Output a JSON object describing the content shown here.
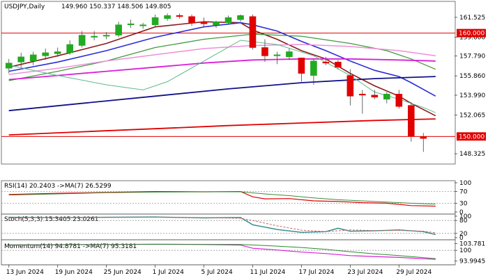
{
  "chart_data": {
    "type": "candlestick",
    "symbol_label": "USDJPY,Daily",
    "ohlc_label": "149.960 150.337 148.506 149.805",
    "price_axis": {
      "ticks": [
        "161.525",
        "159.600",
        "157.790",
        "155.860",
        "153.990",
        "152.065",
        "148.325"
      ],
      "ylim": [
        147.4,
        163.0
      ]
    },
    "price_tags": [
      {
        "label": "160.000",
        "value": 160.0,
        "color": "#e00000"
      },
      {
        "label": "150.000",
        "value": 150.0,
        "color": "#e00000"
      }
    ],
    "x_labels": [
      {
        "label": "13 Jun 2024",
        "index": 0
      },
      {
        "label": "19 Jun 2024",
        "index": 4
      },
      {
        "label": "25 Jun 2024",
        "index": 8
      },
      {
        "label": "1 Jul 2024",
        "index": 12
      },
      {
        "label": "5 Jul 2024",
        "index": 16
      },
      {
        "label": "11 Jul 2024",
        "index": 20
      },
      {
        "label": "17 Jul 2024",
        "index": 24
      },
      {
        "label": "23 Jul 2024",
        "index": 28
      },
      {
        "label": "29 Jul 2024",
        "index": 32
      }
    ],
    "n_slots": 37,
    "candles": [
      {
        "o": 156.6,
        "h": 157.5,
        "l": 156.1,
        "c": 157.1
      },
      {
        "o": 157.2,
        "h": 158.1,
        "l": 156.7,
        "c": 157.7
      },
      {
        "o": 157.3,
        "h": 158.2,
        "l": 156.9,
        "c": 157.9
      },
      {
        "o": 157.8,
        "h": 158.5,
        "l": 157.4,
        "c": 158.1
      },
      {
        "o": 158.0,
        "h": 158.6,
        "l": 157.7,
        "c": 158.2
      },
      {
        "o": 158.1,
        "h": 159.3,
        "l": 157.9,
        "c": 158.9
      },
      {
        "o": 158.8,
        "h": 160.2,
        "l": 158.6,
        "c": 159.8
      },
      {
        "o": 159.6,
        "h": 160.2,
        "l": 159.3,
        "c": 159.7
      },
      {
        "o": 159.7,
        "h": 160.1,
        "l": 159.4,
        "c": 159.8
      },
      {
        "o": 159.8,
        "h": 161.1,
        "l": 159.6,
        "c": 160.8
      },
      {
        "o": 160.8,
        "h": 161.3,
        "l": 160.5,
        "c": 160.9
      },
      {
        "o": 160.7,
        "h": 161.0,
        "l": 160.4,
        "c": 160.8
      },
      {
        "o": 160.8,
        "h": 161.8,
        "l": 160.6,
        "c": 161.5
      },
      {
        "o": 161.4,
        "h": 161.9,
        "l": 161.2,
        "c": 161.7
      },
      {
        "o": 161.7,
        "h": 161.9,
        "l": 161.4,
        "c": 161.6
      },
      {
        "o": 161.6,
        "h": 161.8,
        "l": 160.7,
        "c": 161.0
      },
      {
        "o": 161.1,
        "h": 161.5,
        "l": 160.6,
        "c": 160.9
      },
      {
        "o": 160.8,
        "h": 161.2,
        "l": 160.5,
        "c": 161.1
      },
      {
        "o": 161.0,
        "h": 161.7,
        "l": 160.8,
        "c": 161.5
      },
      {
        "o": 161.3,
        "h": 161.8,
        "l": 161.1,
        "c": 161.7
      },
      {
        "o": 161.6,
        "h": 161.8,
        "l": 158.4,
        "c": 158.6
      },
      {
        "o": 158.6,
        "h": 159.4,
        "l": 157.2,
        "c": 157.8
      },
      {
        "o": 157.8,
        "h": 158.2,
        "l": 157.0,
        "c": 157.9
      },
      {
        "o": 157.7,
        "h": 158.5,
        "l": 157.4,
        "c": 158.2
      },
      {
        "o": 157.6,
        "h": 157.6,
        "l": 155.3,
        "c": 156.1
      },
      {
        "o": 155.9,
        "h": 157.5,
        "l": 155.0,
        "c": 157.3
      },
      {
        "o": 157.2,
        "h": 157.7,
        "l": 156.9,
        "c": 157.1
      },
      {
        "o": 157.2,
        "h": 157.4,
        "l": 156.5,
        "c": 156.7
      },
      {
        "o": 155.9,
        "h": 156.5,
        "l": 153.0,
        "c": 153.9
      },
      {
        "o": 154.1,
        "h": 154.5,
        "l": 152.2,
        "c": 154.0
      },
      {
        "o": 154.0,
        "h": 154.5,
        "l": 153.6,
        "c": 153.8
      },
      {
        "o": 153.6,
        "h": 154.3,
        "l": 153.2,
        "c": 154.1
      },
      {
        "o": 154.1,
        "h": 154.5,
        "l": 152.7,
        "c": 152.9
      },
      {
        "o": 153.0,
        "h": 153.3,
        "l": 149.5,
        "c": 150.0
      },
      {
        "o": 149.96,
        "h": 150.337,
        "l": 148.506,
        "c": 149.805
      }
    ],
    "colors": {
      "bull": "#22aa22",
      "bear": "#e00000",
      "edge": "#444444"
    },
    "moving_averages": [
      {
        "color": "#8b1a1a",
        "width": 1.6,
        "points": [
          [
            0,
            156.7
          ],
          [
            4,
            157.8
          ],
          [
            8,
            159.0
          ],
          [
            12,
            160.6
          ],
          [
            16,
            161.1
          ],
          [
            19,
            161.0
          ],
          [
            20,
            160.3
          ],
          [
            22,
            159.4
          ],
          [
            24,
            158.3
          ],
          [
            26,
            157.5
          ],
          [
            28,
            156.1
          ],
          [
            30,
            154.9
          ],
          [
            32,
            153.9
          ],
          [
            33,
            153.2
          ],
          [
            35,
            152.0
          ]
        ]
      },
      {
        "color": "#2b2bd8",
        "width": 1.6,
        "points": [
          [
            0,
            156.3
          ],
          [
            4,
            157.2
          ],
          [
            8,
            158.3
          ],
          [
            12,
            159.6
          ],
          [
            16,
            160.6
          ],
          [
            19,
            161.0
          ],
          [
            20,
            160.8
          ],
          [
            22,
            160.2
          ],
          [
            24,
            159.2
          ],
          [
            26,
            158.3
          ],
          [
            28,
            157.3
          ],
          [
            30,
            156.4
          ],
          [
            32,
            155.8
          ],
          [
            33,
            155.2
          ],
          [
            35,
            153.9
          ]
        ]
      },
      {
        "color": "#3e9a3e",
        "width": 1.3,
        "points": [
          [
            0,
            155.4
          ],
          [
            4,
            156.3
          ],
          [
            8,
            157.3
          ],
          [
            12,
            158.6
          ],
          [
            16,
            159.4
          ],
          [
            20,
            159.9
          ],
          [
            24,
            159.7
          ],
          [
            28,
            159.0
          ],
          [
            31,
            158.3
          ],
          [
            33,
            157.5
          ],
          [
            35,
            156.5
          ]
        ]
      },
      {
        "color": "#ee8fd8",
        "width": 1.5,
        "points": [
          [
            0,
            156.0
          ],
          [
            4,
            156.6
          ],
          [
            8,
            157.3
          ],
          [
            12,
            157.9
          ],
          [
            16,
            158.5
          ],
          [
            20,
            158.8
          ],
          [
            24,
            158.9
          ],
          [
            28,
            158.7
          ],
          [
            32,
            158.3
          ],
          [
            35,
            157.8
          ]
        ]
      },
      {
        "color": "#d81fd8",
        "width": 1.8,
        "points": [
          [
            0,
            155.5
          ],
          [
            4,
            155.9
          ],
          [
            8,
            156.3
          ],
          [
            12,
            156.7
          ],
          [
            16,
            157.1
          ],
          [
            20,
            157.4
          ],
          [
            24,
            157.5
          ],
          [
            28,
            157.5
          ],
          [
            32,
            157.4
          ],
          [
            35,
            157.3
          ]
        ]
      },
      {
        "color": "#111188",
        "width": 1.8,
        "points": [
          [
            0,
            152.5
          ],
          [
            6,
            153.2
          ],
          [
            12,
            153.9
          ],
          [
            18,
            154.6
          ],
          [
            24,
            155.2
          ],
          [
            30,
            155.6
          ],
          [
            35,
            155.8
          ]
        ]
      },
      {
        "color": "#e00000",
        "width": 1.8,
        "points": [
          [
            0,
            150.15
          ],
          [
            6,
            150.45
          ],
          [
            12,
            150.75
          ],
          [
            18,
            151.05
          ],
          [
            24,
            151.3
          ],
          [
            30,
            151.55
          ],
          [
            35,
            151.7
          ]
        ]
      },
      {
        "color": "#5cb88a",
        "width": 1.0,
        "points": [
          [
            0,
            156.9
          ],
          [
            4,
            155.9
          ],
          [
            8,
            155.0
          ],
          [
            11,
            154.5
          ],
          [
            13,
            155.3
          ],
          [
            16,
            157.3
          ],
          [
            19,
            159.3
          ],
          [
            22,
            158.9
          ],
          [
            25,
            157.8
          ],
          [
            28,
            155.9
          ],
          [
            30,
            154.3
          ],
          [
            32,
            153.6
          ],
          [
            34,
            152.8
          ],
          [
            35,
            152.3
          ]
        ]
      }
    ],
    "panels": [
      {
        "name": "rsi",
        "label": "RSI(14) 20.2403 ->MA(7) 26.5299",
        "ticks": [
          "100",
          "70",
          "30",
          "0"
        ],
        "tick_values": [
          100,
          70,
          30,
          0
        ],
        "ylim": [
          0,
          100
        ],
        "levels": [
          70,
          30
        ],
        "series": [
          {
            "color": "#e00000",
            "width": 1.2,
            "points": [
              [
                0,
                60
              ],
              [
                4,
                64
              ],
              [
                8,
                67
              ],
              [
                12,
                70
              ],
              [
                16,
                69
              ],
              [
                19,
                70
              ],
              [
                20,
                52
              ],
              [
                21,
                45
              ],
              [
                23,
                46
              ],
              [
                25,
                38
              ],
              [
                27,
                36
              ],
              [
                29,
                32
              ],
              [
                31,
                30
              ],
              [
                33,
                22
              ],
              [
                35,
                20
              ]
            ]
          },
          {
            "color": "#3e8a3e",
            "width": 1.0,
            "points": [
              [
                0,
                58
              ],
              [
                4,
                62
              ],
              [
                8,
                66
              ],
              [
                12,
                68
              ],
              [
                16,
                69
              ],
              [
                19,
                69
              ],
              [
                21,
                62
              ],
              [
                23,
                56
              ],
              [
                25,
                48
              ],
              [
                27,
                42
              ],
              [
                29,
                38
              ],
              [
                31,
                34
              ],
              [
                33,
                30
              ],
              [
                35,
                27
              ]
            ]
          }
        ]
      },
      {
        "name": "stochastic",
        "label": "Stoch(5,3,3) 15.3405 23.0261",
        "ticks": [
          "100",
          "80",
          "20",
          "0"
        ],
        "tick_values": [
          100,
          80,
          20,
          0
        ],
        "ylim": [
          0,
          100
        ],
        "levels": [
          80,
          20
        ],
        "series": [
          {
            "color": "#2a8a8a",
            "width": 1.4,
            "points": [
              [
                0,
                95
              ],
              [
                4,
                93
              ],
              [
                8,
                95
              ],
              [
                12,
                96
              ],
              [
                16,
                92
              ],
              [
                19,
                94
              ],
              [
                20,
                60
              ],
              [
                22,
                38
              ],
              [
                24,
                25
              ],
              [
                26,
                28
              ],
              [
                27,
                44
              ],
              [
                28,
                30
              ],
              [
                30,
                32
              ],
              [
                32,
                36
              ],
              [
                34,
                28
              ],
              [
                35,
                15
              ]
            ]
          },
          {
            "color": "#d06060",
            "width": 1.0,
            "dash": "3,2",
            "points": [
              [
                0,
                92
              ],
              [
                4,
                94
              ],
              [
                8,
                94
              ],
              [
                12,
                95
              ],
              [
                16,
                93
              ],
              [
                19,
                90
              ],
              [
                20,
                80
              ],
              [
                22,
                55
              ],
              [
                24,
                35
              ],
              [
                26,
                28
              ],
              [
                27,
                32
              ],
              [
                28,
                36
              ],
              [
                30,
                33
              ],
              [
                32,
                34
              ],
              [
                34,
                30
              ],
              [
                35,
                23
              ]
            ]
          }
        ]
      },
      {
        "name": "momentum",
        "label": "Momentum(14) 94.8781 ->MA(7) 95.3181",
        "ticks": [
          "103.781",
          "100",
          "93.9945"
        ],
        "tick_values": [
          103.781,
          100,
          93.9945
        ],
        "ylim": [
          93.0,
          104.8
        ],
        "levels": [
          100
        ],
        "series": [
          {
            "color": "#d81fd8",
            "width": 1.2,
            "points": [
              [
                0,
                103.0
              ],
              [
                4,
                103.2
              ],
              [
                8,
                103.3
              ],
              [
                12,
                103.5
              ],
              [
                16,
                103.3
              ],
              [
                19,
                103.0
              ],
              [
                20,
                101.2
              ],
              [
                22,
                100.2
              ],
              [
                24,
                99.0
              ],
              [
                26,
                98.2
              ],
              [
                28,
                97.0
              ],
              [
                30,
                96.5
              ],
              [
                32,
                96.0
              ],
              [
                35,
                94.88
              ]
            ]
          },
          {
            "color": "#2a8a2a",
            "width": 1.0,
            "points": [
              [
                0,
                103.1
              ],
              [
                4,
                103.2
              ],
              [
                8,
                103.3
              ],
              [
                12,
                103.4
              ],
              [
                16,
                103.4
              ],
              [
                19,
                103.3
              ],
              [
                22,
                102.4
              ],
              [
                24,
                101.6
              ],
              [
                26,
                100.6
              ],
              [
                28,
                99.2
              ],
              [
                30,
                98.0
              ],
              [
                32,
                97.0
              ],
              [
                35,
                95.32
              ]
            ]
          }
        ]
      }
    ]
  }
}
